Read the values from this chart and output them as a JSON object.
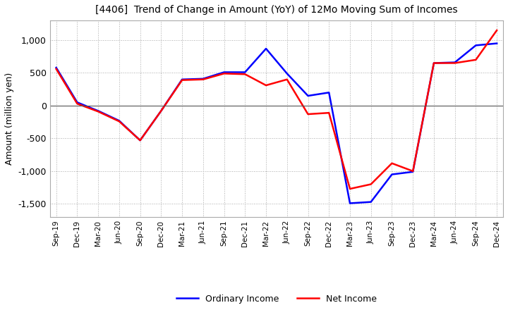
{
  "title": "[4406]  Trend of Change in Amount (YoY) of 12Mo Moving Sum of Incomes",
  "ylabel": "Amount (million yen)",
  "ylim": [
    -1700,
    1300
  ],
  "yticks": [
    -1500,
    -1000,
    -500,
    0,
    500,
    1000
  ],
  "background_color": "#ffffff",
  "grid_color": "#aaaaaa",
  "ordinary_income_color": "#0000ff",
  "net_income_color": "#ff0000",
  "x_labels": [
    "Sep-19",
    "Dec-19",
    "Mar-20",
    "Jun-20",
    "Sep-20",
    "Dec-20",
    "Mar-21",
    "Jun-21",
    "Sep-21",
    "Dec-21",
    "Mar-22",
    "Jun-22",
    "Sep-22",
    "Dec-22",
    "Mar-23",
    "Jun-23",
    "Sep-23",
    "Dec-23",
    "Mar-24",
    "Jun-24",
    "Sep-24",
    "Dec-24"
  ],
  "ordinary_income": [
    580,
    50,
    -80,
    -230,
    -530,
    -80,
    400,
    410,
    510,
    510,
    870,
    490,
    150,
    200,
    -1490,
    -1470,
    -1050,
    -1010,
    650,
    660,
    920,
    950
  ],
  "net_income": [
    560,
    30,
    -90,
    -240,
    -530,
    -80,
    390,
    400,
    490,
    480,
    310,
    400,
    -130,
    -110,
    -1270,
    -1200,
    -880,
    -1000,
    650,
    650,
    700,
    1150
  ]
}
